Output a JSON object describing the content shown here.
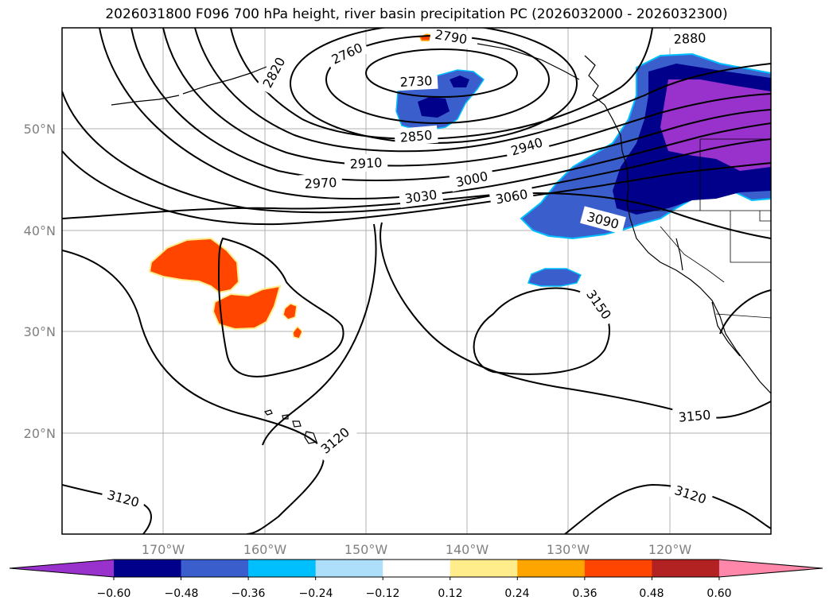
{
  "title": "2026031800 F096 700 hPa height, river basin precipitation PC (2026032000 - 2026032300)",
  "map": {
    "lon_ticks": [
      "170°W",
      "160°W",
      "150°W",
      "140°W",
      "130°W",
      "120°W"
    ],
    "lat_ticks": [
      "50°N",
      "40°N",
      "30°N",
      "20°N"
    ],
    "gridlines": true,
    "contour_labels": [
      "2790",
      "2760",
      "2820",
      "2730",
      "2850",
      "2880",
      "2910",
      "2940",
      "2970",
      "3000",
      "3030",
      "3060",
      "3090",
      "3150",
      "3150",
      "3120",
      "3120",
      "3120"
    ]
  },
  "colorbar": {
    "ticks": [
      "−0.60",
      "−0.48",
      "−0.36",
      "−0.24",
      "−0.12",
      "0.12",
      "0.24",
      "0.36",
      "0.48",
      "0.60"
    ],
    "colors": [
      "#9932CC",
      "#00008B",
      "#3A5FCD",
      "#00BFFF",
      "#ADDFFA",
      "#FFFFFF",
      "#FFEC8B",
      "#FFA500",
      "#FF4500",
      "#B22222",
      "#FF88AA"
    ]
  }
}
